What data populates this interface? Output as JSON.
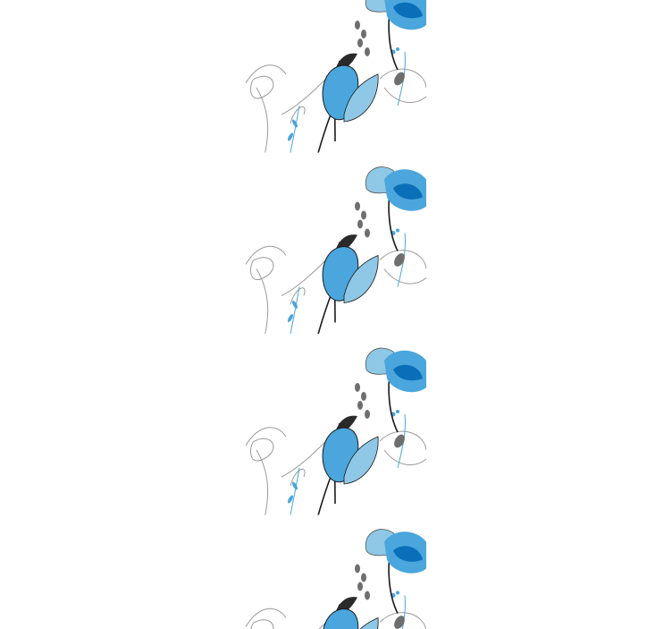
{
  "image": {
    "subject": "floral-wallpaper-strip",
    "colors": {
      "background": "#ffffff",
      "blue_light": "#8ec8e6",
      "blue_mid": "#4aa6dc",
      "blue_dark": "#0a6fb8",
      "stem": "#1a1a1a",
      "grey_line": "#9a9a9a",
      "grey_leaf": "#6e6e6e"
    }
  }
}
